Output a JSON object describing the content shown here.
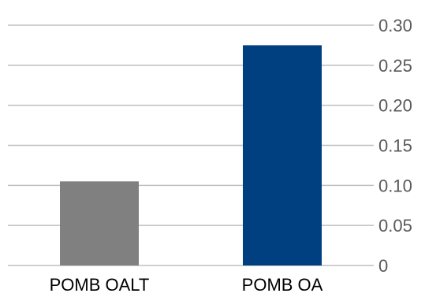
{
  "chart_data": {
    "type": "bar",
    "categories": [
      "POMB OALT",
      "POMB OA"
    ],
    "values": [
      0.105,
      0.275
    ],
    "colors": [
      "#808080",
      "#004080"
    ],
    "ylim": [
      0,
      0.3
    ],
    "yticks": [
      {
        "value": 0,
        "label": "0"
      },
      {
        "value": 0.05,
        "label": "0.05"
      },
      {
        "value": 0.1,
        "label": "0.10"
      },
      {
        "value": 0.15,
        "label": "0.15"
      },
      {
        "value": 0.2,
        "label": "0.20"
      },
      {
        "value": 0.25,
        "label": "0.25"
      },
      {
        "value": 0.3,
        "label": "0.30"
      }
    ],
    "y_axis_side": "right",
    "grid": true,
    "title": "",
    "xlabel": "",
    "ylabel": ""
  }
}
